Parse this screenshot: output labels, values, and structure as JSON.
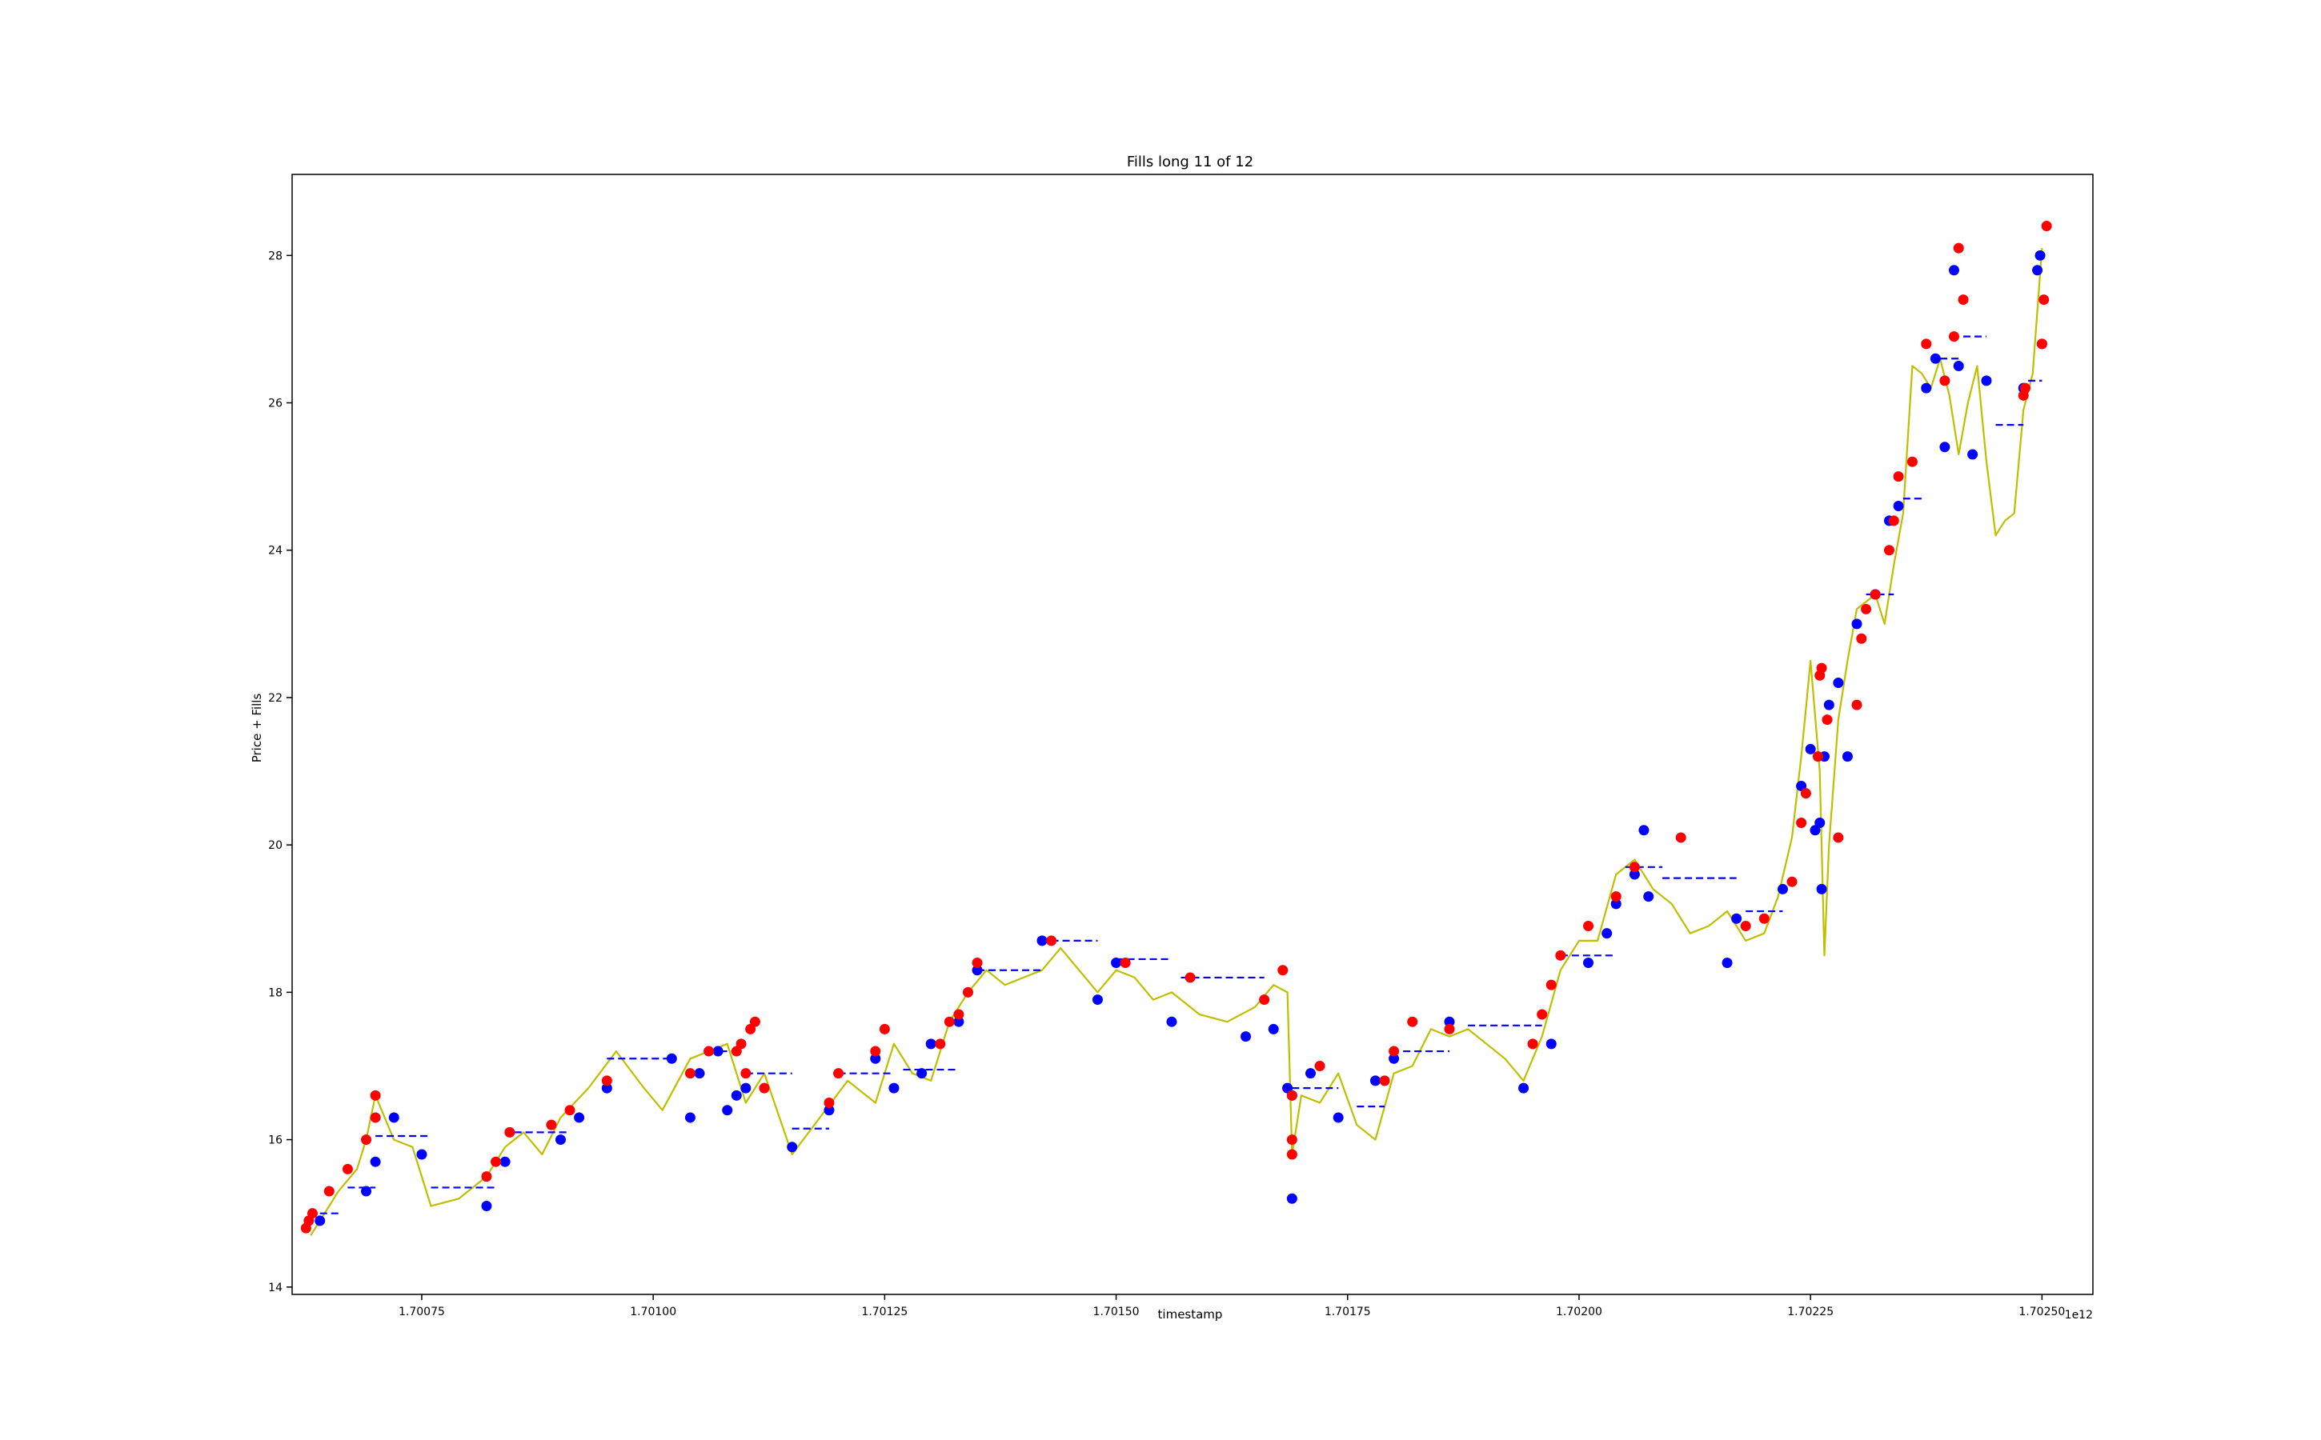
{
  "chart_data": {
    "type": "line",
    "title": "Fills long 11 of 12",
    "xlabel": "timestamp",
    "ylabel": "Price + Fills",
    "x_offset_label": "1e12",
    "xlim": [
      1700610000000,
      1702555000000
    ],
    "ylim": [
      13.9,
      29.1
    ],
    "x_ticks": [
      {
        "value": 1700750000000,
        "label": "1.70075"
      },
      {
        "value": 1701000000000,
        "label": "1.70100"
      },
      {
        "value": 1701250000000,
        "label": "1.70125"
      },
      {
        "value": 1701500000000,
        "label": "1.70150"
      },
      {
        "value": 1701750000000,
        "label": "1.70175"
      },
      {
        "value": 1702000000000,
        "label": "1.70200"
      },
      {
        "value": 1702250000000,
        "label": "1.70225"
      },
      {
        "value": 1702500000000,
        "label": "1.70250"
      }
    ],
    "y_ticks": [
      {
        "value": 14,
        "label": "14"
      },
      {
        "value": 16,
        "label": "16"
      },
      {
        "value": 18,
        "label": "18"
      },
      {
        "value": 20,
        "label": "20"
      },
      {
        "value": 22,
        "label": "22"
      },
      {
        "value": 24,
        "label": "24"
      },
      {
        "value": 26,
        "label": "26"
      },
      {
        "value": 28,
        "label": "28"
      }
    ],
    "grid": false,
    "colors": {
      "price": "#bfbf00",
      "buy_fill": "#0000ff",
      "sell_fill": "#ff0000",
      "position_price": "#0000ff"
    },
    "series": [
      {
        "kind": "price",
        "x": [
          1700630000000,
          1700645000000,
          1700660000000,
          1700680000000,
          1700690000000,
          1700700000000,
          1700720000000,
          1700740000000,
          1700760000000,
          1700790000000,
          1700820000000,
          1700840000000,
          1700860000000,
          1700880000000,
          1700900000000,
          1700930000000,
          1700960000000,
          1700990000000,
          1701010000000,
          1701040000000,
          1701060000000,
          1701080000000,
          1701100000000,
          1701120000000,
          1701150000000,
          1701180000000,
          1701210000000,
          1701240000000,
          1701260000000,
          1701280000000,
          1701300000000,
          1701320000000,
          1701340000000,
          1701360000000,
          1701380000000,
          1701400000000,
          1701420000000,
          1701440000000,
          1701460000000,
          1701480000000,
          1701500000000,
          1701520000000,
          1701540000000,
          1701560000000,
          1701590000000,
          1701620000000,
          1701650000000,
          1701670000000,
          1701685000000,
          1701690000000,
          1701700000000,
          1701720000000,
          1701740000000,
          1701760000000,
          1701780000000,
          1701800000000,
          1701820000000,
          1701840000000,
          1701860000000,
          1701880000000,
          1701900000000,
          1701920000000,
          1701940000000,
          1701960000000,
          1701980000000,
          1702000000000,
          1702020000000,
          1702040000000,
          1702060000000,
          1702080000000,
          1702100000000,
          1702120000000,
          1702140000000,
          1702160000000,
          1702180000000,
          1702200000000,
          1702215000000,
          1702230000000,
          1702240000000,
          1702250000000,
          1702260000000,
          1702265000000,
          1702270000000,
          1702280000000,
          1702290000000,
          1702300000000,
          1702320000000,
          1702330000000,
          1702340000000,
          1702350000000,
          1702360000000,
          1702370000000,
          1702380000000,
          1702390000000,
          1702400000000,
          1702410000000,
          1702420000000,
          1702430000000,
          1702440000000,
          1702450000000,
          1702460000000,
          1702470000000,
          1702480000000,
          1702490000000,
          1702500000000
        ],
        "y": [
          14.7,
          15.0,
          15.3,
          15.6,
          16.0,
          16.6,
          16.0,
          15.9,
          15.1,
          15.2,
          15.5,
          15.9,
          16.1,
          15.8,
          16.3,
          16.7,
          17.2,
          16.7,
          16.4,
          17.1,
          17.2,
          17.3,
          16.5,
          16.9,
          15.8,
          16.3,
          16.8,
          16.5,
          17.3,
          16.9,
          16.8,
          17.6,
          18.0,
          18.3,
          18.1,
          18.2,
          18.3,
          18.6,
          18.3,
          18.0,
          18.3,
          18.2,
          17.9,
          18.0,
          17.7,
          17.6,
          17.8,
          18.1,
          18.0,
          15.8,
          16.6,
          16.5,
          16.9,
          16.2,
          16.0,
          16.9,
          17.0,
          17.5,
          17.4,
          17.5,
          17.3,
          17.1,
          16.8,
          17.4,
          18.3,
          18.7,
          18.7,
          19.6,
          19.8,
          19.4,
          19.2,
          18.8,
          18.9,
          19.1,
          18.7,
          18.8,
          19.3,
          20.1,
          21.2,
          22.5,
          21.0,
          18.5,
          20.0,
          21.7,
          22.5,
          23.2,
          23.4,
          23.0,
          23.8,
          24.5,
          26.5,
          26.4,
          26.2,
          26.6,
          26.1,
          25.3,
          26.0,
          26.5,
          25.2,
          24.2,
          24.4,
          24.5,
          25.9,
          26.4,
          28.1
        ]
      },
      {
        "kind": "buy_fills",
        "x": [
          1700640000000,
          1700690000000,
          1700700000000,
          1700720000000,
          1700750000000,
          1700820000000,
          1700840000000,
          1700900000000,
          1700920000000,
          1700950000000,
          1701020000000,
          1701040000000,
          1701050000000,
          1701070000000,
          1701080000000,
          1701090000000,
          1701100000000,
          1701150000000,
          1701190000000,
          1701240000000,
          1701260000000,
          1701290000000,
          1701300000000,
          1701330000000,
          1701350000000,
          1701420000000,
          1701480000000,
          1701500000000,
          1701560000000,
          1701640000000,
          1701670000000,
          1701685000000,
          1701690000000,
          1701690000000,
          1701710000000,
          1701740000000,
          1701780000000,
          1701800000000,
          1701860000000,
          1701940000000,
          1701970000000,
          1702010000000,
          1702030000000,
          1702040000000,
          1702060000000,
          1702070000000,
          1702075000000,
          1702160000000,
          1702170000000,
          1702220000000,
          1702240000000,
          1702250000000,
          1702255000000,
          1702260000000,
          1702262000000,
          1702265000000,
          1702270000000,
          1702280000000,
          1702290000000,
          1702300000000,
          1702320000000,
          1702335000000,
          1702345000000,
          1702375000000,
          1702385000000,
          1702395000000,
          1702405000000,
          1702410000000,
          1702425000000,
          1702440000000,
          1702480000000,
          1702495000000,
          1702498000000,
          1702500000000
        ],
        "y": [
          14.9,
          15.3,
          15.7,
          16.3,
          15.8,
          15.1,
          15.7,
          16.0,
          16.3,
          16.7,
          17.1,
          16.3,
          16.9,
          17.2,
          16.4,
          16.6,
          16.7,
          15.9,
          16.4,
          17.1,
          16.7,
          16.9,
          17.3,
          17.6,
          18.3,
          18.7,
          17.9,
          18.4,
          17.6,
          17.4,
          17.5,
          16.7,
          16.6,
          15.2,
          16.9,
          16.3,
          16.8,
          17.1,
          17.6,
          16.7,
          17.3,
          18.4,
          18.8,
          19.2,
          19.6,
          20.2,
          19.3,
          18.4,
          19.0,
          19.4,
          20.8,
          21.3,
          20.2,
          20.3,
          19.4,
          21.2,
          21.9,
          22.2,
          21.2,
          23.0,
          23.4,
          24.4,
          24.6,
          26.2,
          26.6,
          25.4,
          27.8,
          26.5,
          25.3,
          26.3,
          26.2,
          27.8,
          28.0,
          26.8
        ]
      },
      {
        "kind": "sell_fills",
        "x": [
          1700625000000,
          1700628000000,
          1700632000000,
          1700650000000,
          1700670000000,
          1700690000000,
          1700700000000,
          1700700000000,
          1700820000000,
          1700830000000,
          1700845000000,
          1700890000000,
          1700910000000,
          1700950000000,
          1701040000000,
          1701060000000,
          1701090000000,
          1701095000000,
          1701100000000,
          1701105000000,
          1701110000000,
          1701120000000,
          1701190000000,
          1701200000000,
          1701240000000,
          1701250000000,
          1701310000000,
          1701320000000,
          1701330000000,
          1701340000000,
          1701350000000,
          1701430000000,
          1701510000000,
          1701580000000,
          1701660000000,
          1701680000000,
          1701690000000,
          1701690000000,
          1701690000000,
          1701720000000,
          1701790000000,
          1701800000000,
          1701820000000,
          1701860000000,
          1701950000000,
          1701960000000,
          1701970000000,
          1701980000000,
          1702010000000,
          1702040000000,
          1702060000000,
          1702110000000,
          1702180000000,
          1702200000000,
          1702230000000,
          1702240000000,
          1702245000000,
          1702258000000,
          1702260000000,
          1702262000000,
          1702268000000,
          1702280000000,
          1702300000000,
          1702305000000,
          1702310000000,
          1702320000000,
          1702335000000,
          1702340000000,
          1702345000000,
          1702360000000,
          1702375000000,
          1702395000000,
          1702405000000,
          1702410000000,
          1702415000000,
          1702480000000,
          1702482000000,
          1702500000000,
          1702502000000,
          1702505000000
        ],
        "y": [
          14.8,
          14.9,
          15.0,
          15.3,
          15.6,
          16.0,
          16.3,
          16.6,
          15.5,
          15.7,
          16.1,
          16.2,
          16.4,
          16.8,
          16.9,
          17.2,
          17.2,
          17.3,
          16.9,
          17.5,
          17.6,
          16.7,
          16.5,
          16.9,
          17.2,
          17.5,
          17.3,
          17.6,
          17.7,
          18.0,
          18.4,
          18.7,
          18.4,
          18.2,
          17.9,
          18.3,
          16.0,
          15.8,
          16.6,
          17.0,
          16.8,
          17.2,
          17.6,
          17.5,
          17.3,
          17.7,
          18.1,
          18.5,
          18.9,
          19.3,
          19.7,
          20.1,
          18.9,
          19.0,
          19.5,
          20.3,
          20.7,
          21.2,
          22.3,
          22.4,
          21.7,
          20.1,
          21.9,
          22.8,
          23.2,
          23.4,
          24.0,
          24.4,
          25.0,
          25.2,
          26.8,
          26.3,
          26.9,
          28.1,
          27.4,
          26.1,
          26.2,
          26.8,
          27.4,
          28.4
        ]
      },
      {
        "kind": "position_price",
        "segments": [
          {
            "x": [
              1700640000000,
              1700660000000
            ],
            "y": 15.0
          },
          {
            "x": [
              1700670000000,
              1700700000000
            ],
            "y": 15.35
          },
          {
            "x": [
              1700700000000,
              1700760000000
            ],
            "y": 16.05
          },
          {
            "x": [
              1700760000000,
              1700830000000
            ],
            "y": 15.35
          },
          {
            "x": [
              1700850000000,
              1700910000000
            ],
            "y": 16.1
          },
          {
            "x": [
              1700950000000,
              1701020000000
            ],
            "y": 17.1
          },
          {
            "x": [
              1701060000000,
              1701090000000
            ],
            "y": 17.2
          },
          {
            "x": [
              1701100000000,
              1701150000000
            ],
            "y": 16.9
          },
          {
            "x": [
              1701150000000,
              1701190000000
            ],
            "y": 16.15
          },
          {
            "x": [
              1701200000000,
              1701260000000
            ],
            "y": 16.9
          },
          {
            "x": [
              1701270000000,
              1701330000000
            ],
            "y": 16.95
          },
          {
            "x": [
              1701350000000,
              1701420000000
            ],
            "y": 18.3
          },
          {
            "x": [
              1701430000000,
              1701480000000
            ],
            "y": 18.7
          },
          {
            "x": [
              1701500000000,
              1701560000000
            ],
            "y": 18.45
          },
          {
            "x": [
              1701570000000,
              1701660000000
            ],
            "y": 18.2
          },
          {
            "x": [
              1701690000000,
              1701740000000
            ],
            "y": 16.7
          },
          {
            "x": [
              1701760000000,
              1701790000000
            ],
            "y": 16.45
          },
          {
            "x": [
              1701810000000,
              1701860000000
            ],
            "y": 17.2
          },
          {
            "x": [
              1701880000000,
              1701960000000
            ],
            "y": 17.55
          },
          {
            "x": [
              1701980000000,
              1702040000000
            ],
            "y": 18.5
          },
          {
            "x": [
              1702050000000,
              1702090000000
            ],
            "y": 19.7
          },
          {
            "x": [
              1702090000000,
              1702170000000
            ],
            "y": 19.55
          },
          {
            "x": [
              1702180000000,
              1702220000000
            ],
            "y": 19.1
          },
          {
            "x": [
              1702310000000,
              1702340000000
            ],
            "y": 23.4
          },
          {
            "x": [
              1702350000000,
              1702370000000
            ],
            "y": 24.7
          },
          {
            "x": [
              1702390000000,
              1702410000000
            ],
            "y": 26.6
          },
          {
            "x": [
              1702415000000,
              1702440000000
            ],
            "y": 26.9
          },
          {
            "x": [
              1702450000000,
              1702480000000
            ],
            "y": 25.7
          },
          {
            "x": [
              1702485000000,
              1702500000000
            ],
            "y": 26.3
          }
        ]
      }
    ]
  }
}
